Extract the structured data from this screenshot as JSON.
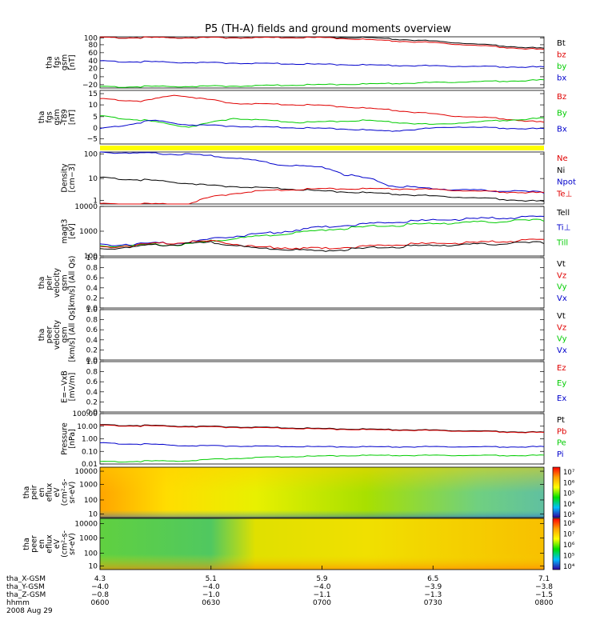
{
  "title": "P5 (TH-A) fields and ground moments overview",
  "colors": {
    "black": "#000000",
    "red": "#e00000",
    "green": "#00cc00",
    "blue": "#0000cc",
    "yellow": "#ffff00"
  },
  "chart_data": [
    {
      "type": "line",
      "ylabel": [
        "tha",
        "fgs",
        "gsm",
        "[nT]"
      ],
      "ticks": [
        "100",
        "80",
        "60",
        "40",
        "20",
        "0",
        "−20"
      ],
      "ylim": [
        -25,
        105
      ],
      "legend": [
        {
          "name": "Bt",
          "color": "black"
        },
        {
          "name": "bz",
          "color": "red"
        },
        {
          "name": "by",
          "color": "green"
        },
        {
          "name": "bx",
          "color": "blue"
        }
      ],
      "series": [
        {
          "name": "Bt",
          "color": "black",
          "x": [
            0,
            0.6,
            0.75,
            1
          ],
          "y": [
            103,
            103,
            94,
            75
          ]
        },
        {
          "name": "bz",
          "color": "red",
          "x": [
            0,
            0.5,
            0.75,
            1
          ],
          "y": [
            103,
            103,
            90,
            72
          ]
        },
        {
          "name": "by",
          "color": "green",
          "x": [
            0,
            0.3,
            0.6,
            1
          ],
          "y": [
            -22,
            -20,
            -15,
            -5
          ]
        },
        {
          "name": "bx",
          "color": "blue",
          "x": [
            0,
            0.2,
            0.5,
            0.75,
            1
          ],
          "y": [
            43,
            40,
            35,
            31,
            28
          ]
        }
      ]
    },
    {
      "type": "line",
      "ylabel": [
        "tha",
        "fgs",
        "gsm",
        "-T89",
        "[nT]"
      ],
      "ticks": [
        "15",
        "10",
        "5",
        "0",
        "−5"
      ],
      "ylim": [
        -8,
        17
      ],
      "legend": [
        {
          "name": "Bz",
          "color": "red"
        },
        {
          "name": "By",
          "color": "green"
        },
        {
          "name": "Bx",
          "color": "blue"
        }
      ],
      "series": [
        {
          "name": "Bz",
          "color": "red",
          "x": [
            0,
            0.1,
            0.17,
            0.3,
            0.5,
            0.65,
            0.8,
            0.9,
            1
          ],
          "y": [
            13,
            12,
            15,
            11,
            10,
            8,
            5,
            4,
            2
          ]
        },
        {
          "name": "By",
          "color": "green",
          "x": [
            0,
            0.1,
            0.2,
            0.3,
            0.45,
            0.6,
            0.75,
            0.9,
            1
          ],
          "y": [
            5,
            3,
            0,
            4,
            2,
            3,
            1,
            3,
            4
          ]
        },
        {
          "name": "Bx",
          "color": "blue",
          "x": [
            0,
            0.12,
            0.2,
            0.35,
            0.55,
            0.65,
            0.8,
            1
          ],
          "y": [
            -1,
            3,
            1,
            0,
            -1,
            -2,
            0,
            -1
          ]
        }
      ]
    },
    {
      "type": "line",
      "ylabel": [
        "Density",
        "[cm−3]"
      ],
      "ticks": [
        "100",
        "10",
        "1"
      ],
      "log": true,
      "ylim": [
        0.3,
        200
      ],
      "legend": [
        {
          "name": "Ne",
          "color": "red"
        },
        {
          "name": "Ni",
          "color": "black"
        },
        {
          "name": "Npot",
          "color": "blue"
        },
        {
          "name": "Te⊥",
          "color": "red"
        }
      ],
      "series": [
        {
          "name": "Ni",
          "color": "black",
          "x": [
            0,
            0.25,
            0.5,
            0.75,
            1
          ],
          "y": [
            8,
            3,
            1.5,
            0.8,
            0.4
          ]
        },
        {
          "name": "Npot",
          "color": "blue",
          "x": [
            0,
            0.1,
            0.2,
            0.4,
            0.5,
            0.55,
            0.65,
            0.75,
            0.85,
            1
          ],
          "y": [
            200,
            170,
            150,
            40,
            30,
            12,
            3,
            2,
            1.7,
            1.3
          ]
        },
        {
          "name": "Ne",
          "color": "red",
          "x": [
            0,
            0.2,
            0.35,
            0.5,
            0.7,
            0.85,
            1
          ],
          "y": [
            0.3,
            0.3,
            1.5,
            2,
            2,
            1.5,
            1.2
          ]
        }
      ]
    },
    {
      "type": "line",
      "ylabel": [
        "magt3",
        "[eV]"
      ],
      "ticks": [
        "10000",
        "1000",
        "100"
      ],
      "log": true,
      "ylim": [
        100,
        10000
      ],
      "legend": [
        {
          "name": "Tell",
          "color": "black"
        },
        {
          "name": "Ti⊥",
          "color": "blue"
        },
        {
          "name": "Till",
          "color": "green"
        }
      ],
      "series": [
        {
          "name": "Ti⊥",
          "color": "blue",
          "x": [
            0,
            0.2,
            0.4,
            0.6,
            0.8,
            1
          ],
          "y": [
            280,
            350,
            900,
            2000,
            3000,
            3800
          ]
        },
        {
          "name": "Till",
          "color": "green",
          "x": [
            0,
            0.2,
            0.4,
            0.6,
            0.8,
            1
          ],
          "y": [
            250,
            300,
            700,
            1500,
            2200,
            2800
          ]
        },
        {
          "name": "Te⊥",
          "color": "red",
          "x": [
            0,
            0.25,
            0.35,
            0.5,
            0.7,
            0.85,
            1
          ],
          "y": [
            220,
            400,
            230,
            200,
            300,
            350,
            450
          ]
        },
        {
          "name": "Tell",
          "color": "black",
          "x": [
            0,
            0.25,
            0.35,
            0.5,
            0.7,
            0.85,
            1
          ],
          "y": [
            190,
            350,
            200,
            160,
            250,
            300,
            350
          ]
        }
      ]
    },
    {
      "type": "line",
      "ylabel": [
        "tha",
        "peir",
        "velocity",
        "gsm",
        "[km/s] (All Qs)"
      ],
      "ticks": [
        "1.0",
        "0.8",
        "0.6",
        "0.4",
        "0.2",
        "0.0"
      ],
      "ylim": [
        0,
        1
      ],
      "legend": [
        {
          "name": "Vt",
          "color": "black"
        },
        {
          "name": "Vz",
          "color": "red"
        },
        {
          "name": "Vy",
          "color": "green"
        },
        {
          "name": "Vx",
          "color": "blue"
        }
      ],
      "series": []
    },
    {
      "type": "line",
      "ylabel": [
        "tha",
        "peer",
        "velocity",
        "gsm",
        "[km/s] (All Qs)"
      ],
      "ticks": [
        "1.0",
        "0.8",
        "0.6",
        "0.4",
        "0.2",
        "0.0"
      ],
      "ylim": [
        0,
        1
      ],
      "legend": [
        {
          "name": "Vt",
          "color": "black"
        },
        {
          "name": "Vz",
          "color": "red"
        },
        {
          "name": "Vy",
          "color": "green"
        },
        {
          "name": "Vx",
          "color": "blue"
        }
      ],
      "series": []
    },
    {
      "type": "line",
      "ylabel": [
        "E=−VxB",
        "[mV/m]"
      ],
      "ticks": [
        "1.0",
        "0.8",
        "0.6",
        "0.4",
        "0.2",
        "0.0"
      ],
      "ylim": [
        0,
        1
      ],
      "legend": [
        {
          "name": "Ez",
          "color": "red"
        },
        {
          "name": "Ey",
          "color": "green"
        },
        {
          "name": "Ex",
          "color": "blue"
        }
      ],
      "series": []
    },
    {
      "type": "line",
      "ylabel": [
        "Pressure",
        "[nPa]"
      ],
      "ticks": [
        "100.00",
        "10.00",
        "1.00",
        "0.10",
        "0.01"
      ],
      "log": true,
      "ylim": [
        0.008,
        100
      ],
      "legend": [
        {
          "name": "Pt",
          "color": "black"
        },
        {
          "name": "Pb",
          "color": "red"
        },
        {
          "name": "Pe",
          "color": "green"
        },
        {
          "name": "Pi",
          "color": "blue"
        }
      ],
      "series": [
        {
          "name": "Pt",
          "color": "black",
          "x": [
            0,
            0.5,
            1
          ],
          "y": [
            12,
            6,
            3
          ]
        },
        {
          "name": "Pb",
          "color": "red",
          "x": [
            0,
            0.5,
            1
          ],
          "y": [
            11,
            5.5,
            2.8
          ]
        },
        {
          "name": "Pi",
          "color": "blue",
          "x": [
            0,
            0.2,
            0.5,
            0.75,
            1
          ],
          "y": [
            0.4,
            0.25,
            0.2,
            0.2,
            0.2
          ]
        },
        {
          "name": "Pe",
          "color": "green",
          "x": [
            0,
            0.2,
            0.4,
            0.6,
            0.8,
            1
          ],
          "y": [
            0.012,
            0.015,
            0.03,
            0.04,
            0.04,
            0.04
          ]
        }
      ]
    },
    {
      "type": "heatmap",
      "ylabel": [
        "tha",
        "peir",
        "en",
        "eflux",
        "eV",
        "(cm²-s-",
        "sr-eV)"
      ],
      "ticks": [
        "10000",
        "1000",
        "100",
        "10"
      ],
      "colorbar": {
        "ticks": [
          "10⁷",
          "10⁶",
          "10⁵",
          "10⁴",
          "10³"
        ]
      }
    },
    {
      "type": "heatmap",
      "ylabel": [
        "tha",
        "peer",
        "en",
        "eflux",
        "eV",
        "(cm²-s-",
        "sr-eV)"
      ],
      "ticks": [
        "10000",
        "1000",
        "100",
        "10"
      ],
      "colorbar": {
        "ticks": [
          "10⁸",
          "10⁷",
          "10⁶",
          "10⁵",
          "10⁴"
        ]
      }
    }
  ],
  "x_axis": {
    "rows": [
      {
        "label": "tha_X-GSM",
        "values": [
          "4.3",
          "5.1",
          "5.9",
          "6.5",
          "7.1"
        ]
      },
      {
        "label": "tha_Y-GSM",
        "values": [
          "−4.0",
          "−4.0",
          "−4.0",
          "−3.9",
          "−3.8"
        ]
      },
      {
        "label": "tha_Z-GSM",
        "values": [
          "−0.8",
          "−1.0",
          "−1.1",
          "−1.3",
          "−1.5"
        ]
      },
      {
        "label": "hhmm",
        "values": [
          "0600",
          "0630",
          "0700",
          "0730",
          "0800"
        ]
      }
    ],
    "date": "2008 Aug 29"
  }
}
